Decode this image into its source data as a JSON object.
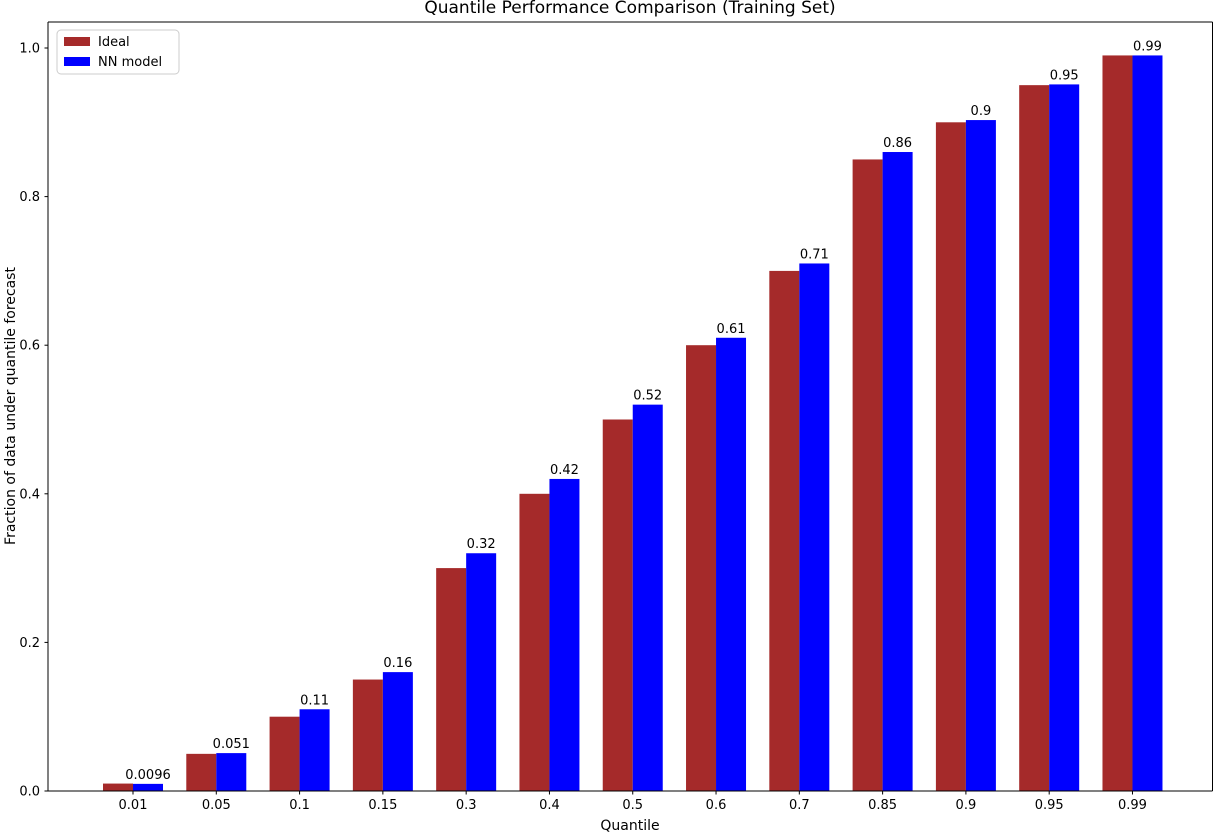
{
  "chart_data": {
    "type": "bar",
    "title": "Quantile Performance Comparison (Training Set)",
    "xlabel": "Quantile",
    "ylabel": "Fraction of data under quantile forecast",
    "categories": [
      "0.01",
      "0.05",
      "0.1",
      "0.15",
      "0.3",
      "0.4",
      "0.5",
      "0.6",
      "0.7",
      "0.85",
      "0.9",
      "0.95",
      "0.99"
    ],
    "series": [
      {
        "name": "Ideal",
        "color": "#A52A2A",
        "values": [
          0.01,
          0.05,
          0.1,
          0.15,
          0.3,
          0.4,
          0.5,
          0.6,
          0.7,
          0.85,
          0.9,
          0.95,
          0.99
        ]
      },
      {
        "name": "NN model",
        "color": "#0000FF",
        "values": [
          0.0096,
          0.051,
          0.11,
          0.16,
          0.32,
          0.42,
          0.52,
          0.61,
          0.71,
          0.86,
          0.903,
          0.951,
          0.99
        ],
        "bar_labels": [
          "0.0096",
          "0.051",
          "0.11",
          "0.16",
          "0.32",
          "0.42",
          "0.52",
          "0.61",
          "0.71",
          "0.86",
          "0.9",
          "0.95",
          "0.99"
        ]
      }
    ],
    "yticks": [
      0.0,
      0.2,
      0.4,
      0.6,
      0.8,
      1.0
    ],
    "ytick_labels": [
      "0.0",
      "0.2",
      "0.4",
      "0.6",
      "0.8",
      "1.0"
    ],
    "ylim": [
      0,
      1.035
    ],
    "grid": false,
    "legend_position": "upper-left",
    "axis_color": "#000000",
    "text_color": "#000000",
    "background_color": "#ffffff"
  }
}
